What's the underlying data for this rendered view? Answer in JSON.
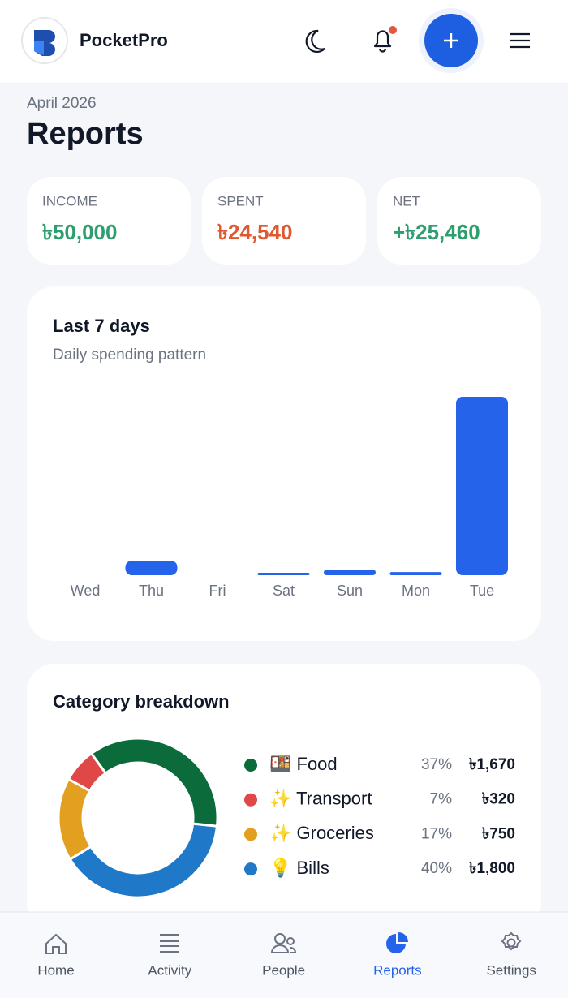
{
  "header": {
    "app_name": "PocketPro"
  },
  "page": {
    "subtitle": "April 2026",
    "title": "Reports"
  },
  "summary": [
    {
      "label": "INCOME",
      "value": "৳50,000",
      "color": "#2e9e6e"
    },
    {
      "label": "SPENT",
      "value": "৳24,540",
      "color": "#e0582f"
    },
    {
      "label": "NET",
      "value": "+৳25,460",
      "color": "#2e9e6e"
    }
  ],
  "chart_data": [
    {
      "type": "bar",
      "title": "Last 7 days",
      "subtitle": "Daily spending pattern",
      "categories": [
        "Wed",
        "Thu",
        "Fri",
        "Sat",
        "Sun",
        "Mon",
        "Tue"
      ],
      "values": [
        0,
        325,
        0,
        55,
        125,
        70,
        3965
      ],
      "color": "#2563eb"
    },
    {
      "type": "donut",
      "title": "Category breakdown",
      "categories": [
        "🍱 Food",
        "✨ Transport",
        "✨ Groceries",
        "💡 Bills"
      ],
      "values": [
        37,
        7,
        17,
        40
      ],
      "value_labels": [
        "37%",
        "7%",
        "17%",
        "40%"
      ],
      "amounts": [
        1670,
        320,
        750,
        1800
      ],
      "amount_labels": [
        "৳1,670",
        "৳320",
        "৳750",
        "৳1,800"
      ],
      "colors": [
        "#0b6b3a",
        "#e04848",
        "#e3a020",
        "#1f78c8"
      ]
    }
  ],
  "nav": [
    {
      "label": "Home",
      "active": false
    },
    {
      "label": "Activity",
      "active": false
    },
    {
      "label": "People",
      "active": false
    },
    {
      "label": "Reports",
      "active": true
    },
    {
      "label": "Settings",
      "active": false
    }
  ]
}
